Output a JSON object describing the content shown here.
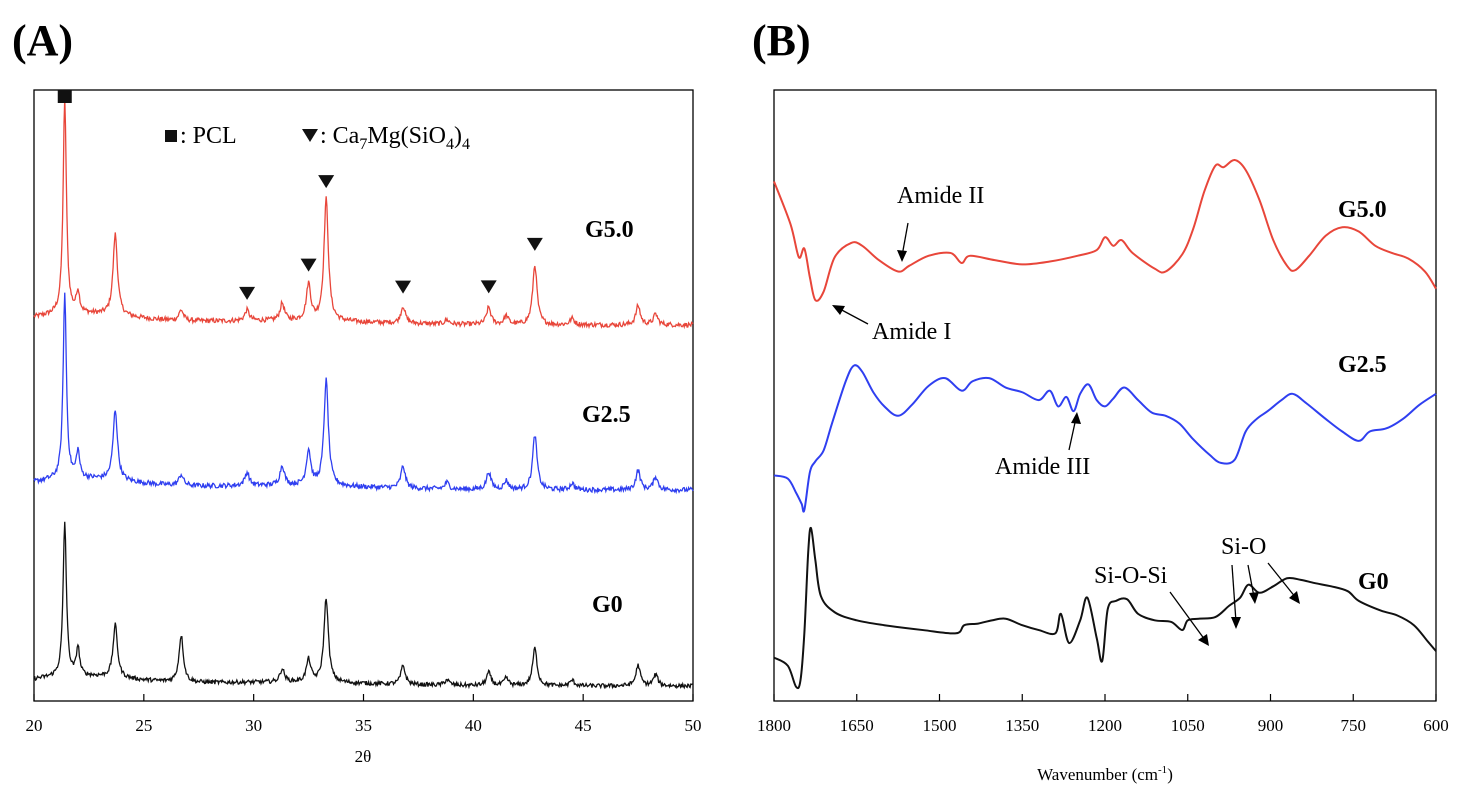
{
  "chart_data": [
    {
      "panel": "(A)",
      "type": "line",
      "xlabel": "2θ",
      "ylabel": "",
      "xlim": [
        20,
        50
      ],
      "x_ticks": [
        "20",
        "25",
        "30",
        "35",
        "40",
        "45",
        "50"
      ],
      "legend": {
        "pcl_label": ": PCL",
        "ca_prefix": ": Ca",
        "ca_sub1": "7",
        "ca_mid": "Mg(SiO",
        "ca_sub2": "4",
        "ca_close": ")",
        "ca_sub3": "4"
      },
      "pcl_peaks": [
        21.4
      ],
      "ca7mg_peaks": [
        29.7,
        32.5,
        33.3,
        36.8,
        40.7,
        42.8
      ],
      "series": [
        {
          "name": "G5.0",
          "color": "#e8463a",
          "peaks": [
            [
              21.4,
              100
            ],
            [
              22.0,
              10
            ],
            [
              23.7,
              38
            ],
            [
              26.7,
              5
            ],
            [
              29.7,
              5
            ],
            [
              31.3,
              8
            ],
            [
              32.5,
              17
            ],
            [
              33.3,
              57
            ],
            [
              36.8,
              8
            ],
            [
              38.8,
              2
            ],
            [
              40.7,
              8
            ],
            [
              41.5,
              4
            ],
            [
              42.8,
              28
            ],
            [
              44.5,
              3
            ],
            [
              47.5,
              9
            ],
            [
              48.3,
              5
            ]
          ]
        },
        {
          "name": "G2.5",
          "color": "#2f3ff0",
          "peaks": [
            [
              21.4,
              84
            ],
            [
              22.0,
              12
            ],
            [
              23.7,
              32
            ],
            [
              26.7,
              5
            ],
            [
              29.7,
              6
            ],
            [
              31.3,
              9
            ],
            [
              32.5,
              16
            ],
            [
              33.3,
              48
            ],
            [
              36.8,
              10
            ],
            [
              38.8,
              3
            ],
            [
              40.7,
              8
            ],
            [
              41.5,
              4
            ],
            [
              42.8,
              25
            ],
            [
              44.5,
              3
            ],
            [
              47.5,
              9
            ],
            [
              48.3,
              6
            ]
          ]
        },
        {
          "name": "G0",
          "color": "#111111",
          "peaks": [
            [
              21.4,
              82
            ],
            [
              22.0,
              15
            ],
            [
              23.7,
              28
            ],
            [
              26.7,
              25
            ],
            [
              31.3,
              7
            ],
            [
              32.5,
              12
            ],
            [
              33.3,
              45
            ],
            [
              36.8,
              10
            ],
            [
              38.8,
              3
            ],
            [
              40.7,
              7
            ],
            [
              41.5,
              4
            ],
            [
              42.8,
              20
            ],
            [
              44.5,
              3
            ],
            [
              47.5,
              11
            ],
            [
              48.3,
              6
            ]
          ]
        }
      ]
    },
    {
      "panel": "(B)",
      "type": "line",
      "xlabel_prefix": "Wavenumber (cm",
      "xlabel_sup": "-1",
      "xlabel_suffix": ")",
      "xlim": [
        1800,
        600
      ],
      "x_ticks": [
        "1800",
        "1650",
        "1500",
        "1350",
        "1200",
        "1050",
        "900",
        "750",
        "600"
      ],
      "series": [
        {
          "name": "G5.0",
          "color": "#e8463a",
          "points": [
            [
              1800,
              0.85
            ],
            [
              1770,
              0.55
            ],
            [
              1755,
              0.32
            ],
            [
              1745,
              0.38
            ],
            [
              1735,
              0.18
            ],
            [
              1725,
              0.02
            ],
            [
              1710,
              0.08
            ],
            [
              1690,
              0.32
            ],
            [
              1660,
              0.42
            ],
            [
              1640,
              0.4
            ],
            [
              1610,
              0.3
            ],
            [
              1575,
              0.22
            ],
            [
              1555,
              0.26
            ],
            [
              1520,
              0.33
            ],
            [
              1480,
              0.35
            ],
            [
              1460,
              0.28
            ],
            [
              1445,
              0.33
            ],
            [
              1400,
              0.3
            ],
            [
              1350,
              0.27
            ],
            [
              1300,
              0.29
            ],
            [
              1250,
              0.33
            ],
            [
              1215,
              0.37
            ],
            [
              1200,
              0.46
            ],
            [
              1185,
              0.4
            ],
            [
              1170,
              0.44
            ],
            [
              1150,
              0.35
            ],
            [
              1110,
              0.24
            ],
            [
              1090,
              0.22
            ],
            [
              1060,
              0.34
            ],
            [
              1040,
              0.52
            ],
            [
              1020,
              0.78
            ],
            [
              1000,
              0.96
            ],
            [
              985,
              0.95
            ],
            [
              965,
              1.0
            ],
            [
              945,
              0.93
            ],
            [
              920,
              0.72
            ],
            [
              895,
              0.44
            ],
            [
              870,
              0.26
            ],
            [
              855,
              0.23
            ],
            [
              830,
              0.33
            ],
            [
              800,
              0.47
            ],
            [
              770,
              0.53
            ],
            [
              740,
              0.5
            ],
            [
              710,
              0.4
            ],
            [
              680,
              0.35
            ],
            [
              650,
              0.31
            ],
            [
              620,
              0.22
            ],
            [
              600,
              0.1
            ]
          ]
        },
        {
          "name": "G2.5",
          "color": "#2f3ff0",
          "points": [
            [
              1800,
              0.22
            ],
            [
              1775,
              0.2
            ],
            [
              1760,
              0.11
            ],
            [
              1750,
              0.04
            ],
            [
              1745,
              0.0
            ],
            [
              1735,
              0.24
            ],
            [
              1725,
              0.31
            ],
            [
              1710,
              0.38
            ],
            [
              1695,
              0.55
            ],
            [
              1670,
              0.82
            ],
            [
              1655,
              0.92
            ],
            [
              1640,
              0.88
            ],
            [
              1620,
              0.75
            ],
            [
              1600,
              0.66
            ],
            [
              1575,
              0.6
            ],
            [
              1550,
              0.67
            ],
            [
              1520,
              0.79
            ],
            [
              1490,
              0.84
            ],
            [
              1460,
              0.76
            ],
            [
              1440,
              0.82
            ],
            [
              1410,
              0.84
            ],
            [
              1380,
              0.78
            ],
            [
              1350,
              0.75
            ],
            [
              1320,
              0.7
            ],
            [
              1300,
              0.76
            ],
            [
              1285,
              0.66
            ],
            [
              1270,
              0.72
            ],
            [
              1257,
              0.63
            ],
            [
              1245,
              0.74
            ],
            [
              1230,
              0.8
            ],
            [
              1215,
              0.7
            ],
            [
              1200,
              0.66
            ],
            [
              1185,
              0.71
            ],
            [
              1165,
              0.78
            ],
            [
              1140,
              0.7
            ],
            [
              1115,
              0.62
            ],
            [
              1090,
              0.6
            ],
            [
              1065,
              0.55
            ],
            [
              1040,
              0.45
            ],
            [
              1010,
              0.35
            ],
            [
              990,
              0.3
            ],
            [
              965,
              0.32
            ],
            [
              945,
              0.5
            ],
            [
              925,
              0.58
            ],
            [
              905,
              0.63
            ],
            [
              880,
              0.7
            ],
            [
              860,
              0.74
            ],
            [
              835,
              0.68
            ],
            [
              800,
              0.58
            ],
            [
              770,
              0.5
            ],
            [
              740,
              0.44
            ],
            [
              720,
              0.5
            ],
            [
              690,
              0.52
            ],
            [
              660,
              0.58
            ],
            [
              630,
              0.67
            ],
            [
              600,
              0.74
            ]
          ]
        },
        {
          "name": "G0",
          "color": "#111111",
          "points": [
            [
              1800,
              0.2
            ],
            [
              1775,
              0.15
            ],
            [
              1760,
              0.02
            ],
            [
              1752,
              0.06
            ],
            [
              1745,
              0.35
            ],
            [
              1738,
              0.85
            ],
            [
              1733,
              1.0
            ],
            [
              1725,
              0.8
            ],
            [
              1715,
              0.58
            ],
            [
              1690,
              0.48
            ],
            [
              1650,
              0.43
            ],
            [
              1600,
              0.4
            ],
            [
              1530,
              0.37
            ],
            [
              1470,
              0.35
            ],
            [
              1455,
              0.4
            ],
            [
              1430,
              0.41
            ],
            [
              1405,
              0.43
            ],
            [
              1380,
              0.44
            ],
            [
              1350,
              0.4
            ],
            [
              1320,
              0.37
            ],
            [
              1290,
              0.35
            ],
            [
              1280,
              0.47
            ],
            [
              1265,
              0.29
            ],
            [
              1245,
              0.43
            ],
            [
              1232,
              0.57
            ],
            [
              1215,
              0.32
            ],
            [
              1205,
              0.18
            ],
            [
              1195,
              0.5
            ],
            [
              1180,
              0.55
            ],
            [
              1160,
              0.56
            ],
            [
              1140,
              0.47
            ],
            [
              1110,
              0.43
            ],
            [
              1080,
              0.42
            ],
            [
              1060,
              0.37
            ],
            [
              1050,
              0.43
            ],
            [
              1030,
              0.44
            ],
            [
              1000,
              0.45
            ],
            [
              975,
              0.52
            ],
            [
              955,
              0.57
            ],
            [
              940,
              0.65
            ],
            [
              920,
              0.6
            ],
            [
              895,
              0.64
            ],
            [
              870,
              0.69
            ],
            [
              845,
              0.68
            ],
            [
              820,
              0.66
            ],
            [
              790,
              0.64
            ],
            [
              760,
              0.61
            ],
            [
              740,
              0.55
            ],
            [
              700,
              0.49
            ],
            [
              670,
              0.46
            ],
            [
              640,
              0.4
            ],
            [
              615,
              0.3
            ],
            [
              600,
              0.24
            ]
          ]
        }
      ],
      "annotations": [
        "Amide II",
        "Amide I",
        "Amide III",
        "Si-O-Si",
        "Si-O"
      ]
    }
  ],
  "labels": {
    "panel_a": "(A)",
    "panel_b": "(B)"
  }
}
